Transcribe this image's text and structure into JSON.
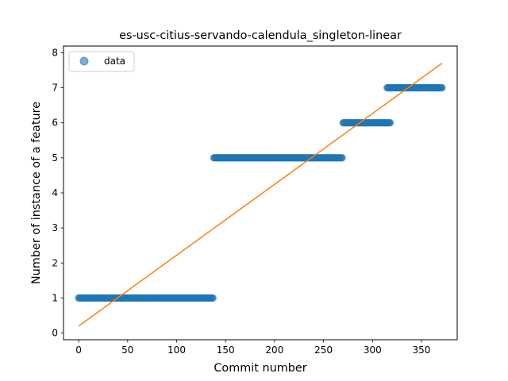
{
  "chart_data": {
    "type": "scatter",
    "title": "es-usc-citius-servando-calendula_singleton-linear",
    "xlabel": "Commit number",
    "ylabel": "Number of instance of a feature",
    "xlim": [
      -15.5,
      386.5
    ],
    "ylim": [
      -0.19,
      8.19
    ],
    "x_ticks": [
      0,
      50,
      100,
      150,
      200,
      250,
      300,
      350
    ],
    "y_ticks": [
      0,
      1,
      2,
      3,
      4,
      5,
      6,
      7,
      8
    ],
    "grid": false,
    "legend": {
      "position": "upper-left",
      "entries": [
        "data"
      ]
    },
    "series": [
      {
        "name": "data",
        "kind": "scatter",
        "color": "#1f77b4",
        "alpha": 0.6,
        "segments": [
          {
            "y": 1,
            "x_start": 0,
            "x_end": 137
          },
          {
            "y": 5,
            "x_start": 138,
            "x_end": 269
          },
          {
            "y": 6,
            "x_start": 270,
            "x_end": 318
          },
          {
            "y": 7,
            "x_start": 315,
            "x_end": 371
          }
        ]
      },
      {
        "kind": "line",
        "color": "#ff7f0e",
        "x": [
          0,
          371
        ],
        "y": [
          0.2,
          7.7
        ]
      }
    ]
  }
}
